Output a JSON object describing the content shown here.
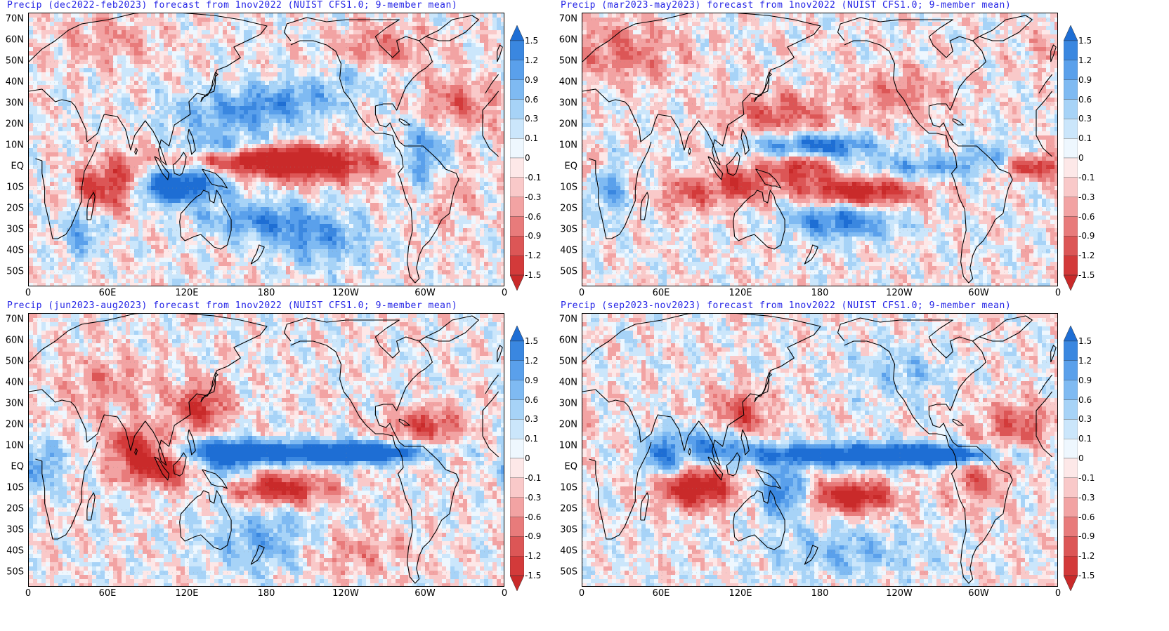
{
  "figure": {
    "panels": [
      {
        "title": "Precip (dec2022-feb2023) forecast from 1nov2022 (NUIST CFS1.0; 9-member mean)",
        "season": "djf"
      },
      {
        "title": "Precip (mar2023-may2023) forecast from 1nov2022 (NUIST CFS1.0; 9-member mean)",
        "season": "mam"
      },
      {
        "title": "Precip (jun2023-aug2023) forecast from 1nov2022 (NUIST CFS1.0; 9-member mean)",
        "season": "jja"
      },
      {
        "title": "Precip (sep2023-nov2023) forecast from 1nov2022 (NUIST CFS1.0; 9-member mean)",
        "season": "son"
      }
    ],
    "lat_ticks": [
      "70N",
      "60N",
      "50N",
      "40N",
      "30N",
      "20N",
      "10N",
      "EQ",
      "10S",
      "20S",
      "30S",
      "40S",
      "50S"
    ],
    "lat_values": [
      70,
      60,
      50,
      40,
      30,
      20,
      10,
      0,
      -10,
      -20,
      -30,
      -40,
      -50
    ],
    "lon_ticks": [
      "0",
      "60E",
      "120E",
      "180",
      "120W",
      "60W",
      "0"
    ],
    "lon_values": [
      0,
      60,
      120,
      180,
      240,
      300,
      360
    ],
    "map_extent": {
      "lon": [
        0,
        360
      ],
      "lat": [
        -57,
        73
      ]
    },
    "colorbar": {
      "labels": [
        "1.5",
        "1.2",
        "0.9",
        "0.6",
        "0.3",
        "0.1",
        "0",
        "-0.1",
        "-0.3",
        "-0.6",
        "-0.9",
        "-1.2",
        "-1.5"
      ],
      "colors": [
        "#1e6ed4",
        "#3a87e0",
        "#5aa0eb",
        "#7fbaf2",
        "#a7d3f7",
        "#cbe6fb",
        "#eef7fe",
        "#fde8e8",
        "#f9c9c9",
        "#f2a3a3",
        "#e87b7b",
        "#dc5656",
        "#d33a3a",
        "#c92a2a"
      ]
    }
  }
}
